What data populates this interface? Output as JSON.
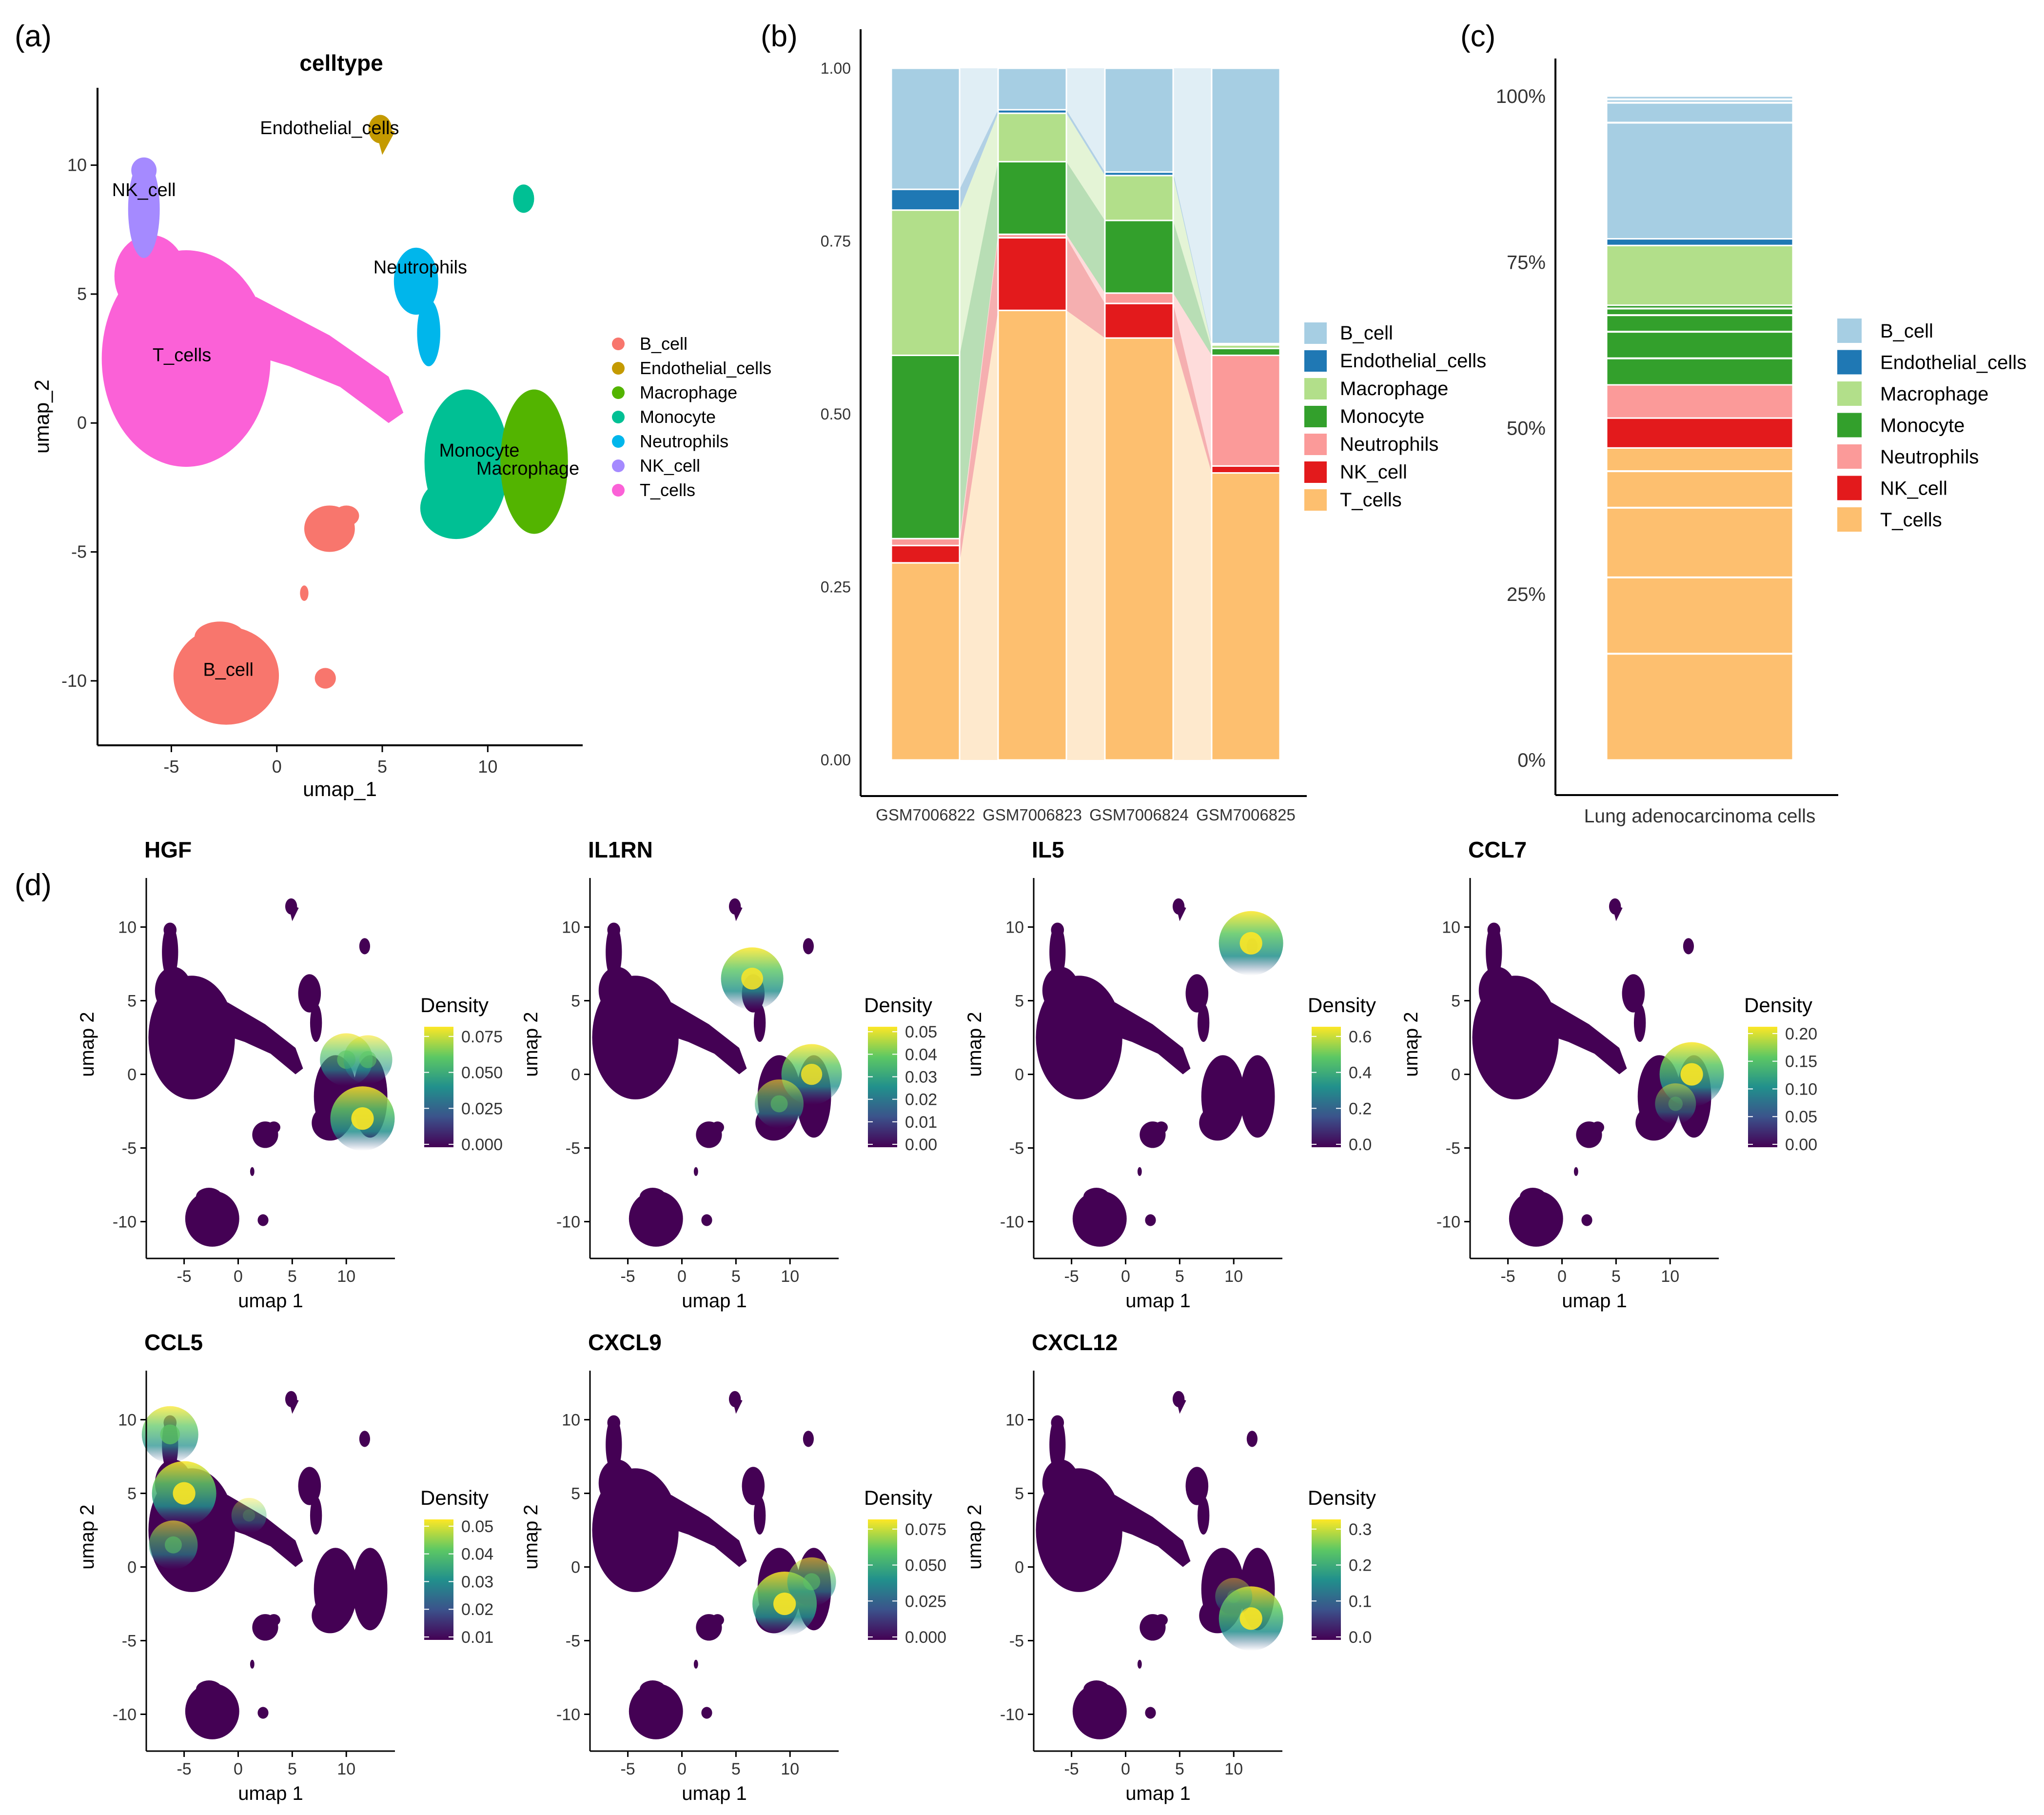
{
  "panel_letters": {
    "a": "(a)",
    "b": "(b)",
    "c": "(c)",
    "d": "(d)"
  },
  "colors": {
    "B_cell": "#a6cee3",
    "Endothelial_cells": "#1f78b4",
    "Macrophage": "#b2df8a",
    "Monocyte": "#33a02c",
    "Neutrophils": "#fb9a99",
    "NK_cell": "#e31a1c",
    "T_cells": "#fdbf6f",
    "umap_B_cell": "#f8766d",
    "umap_Endothelial_cells": "#c49a00",
    "umap_Macrophage": "#53b400",
    "umap_Monocyte": "#00c094",
    "umap_Neutrophils": "#00b6eb",
    "umap_NK_cell": "#a58aff",
    "umap_T_cells": "#fb61d7",
    "viridis": [
      "#440154",
      "#3b528b",
      "#21908c",
      "#5dc863",
      "#fde725"
    ]
  },
  "chart_data": [
    {
      "id": "a",
      "type": "scatter",
      "title": "celltype",
      "xlabel": "umap_1",
      "ylabel": "umap_2",
      "xlim": [
        -8.5,
        14.5
      ],
      "ylim": [
        -12.5,
        13
      ],
      "xticks": [
        -5,
        0,
        5,
        10
      ],
      "yticks": [
        -10,
        -5,
        0,
        5,
        10
      ],
      "legend": [
        "B_cell",
        "Endothelial_cells",
        "Macrophage",
        "Monocyte",
        "Neutrophils",
        "NK_cell",
        "T_cells"
      ],
      "cluster_labels": [
        {
          "text": "Endothelial_cells",
          "x": 2.5,
          "y": 11.2
        },
        {
          "text": "NK_cell",
          "x": -6.3,
          "y": 8.8
        },
        {
          "text": "Neutrophils",
          "x": 6.8,
          "y": 5.8
        },
        {
          "text": "T_cells",
          "x": -4.5,
          "y": 2.4
        },
        {
          "text": "Monocyte",
          "x": 9.6,
          "y": -1.3
        },
        {
          "text": "Macrophage",
          "x": 11.9,
          "y": -2.0
        },
        {
          "text": "B_cell",
          "x": -2.3,
          "y": -9.8
        }
      ]
    },
    {
      "id": "b",
      "type": "bar",
      "stacked": true,
      "categories": [
        "GSM7006822",
        "GSM7006823",
        "GSM7006824",
        "GSM7006825"
      ],
      "ylim": [
        0,
        1
      ],
      "yticks": [
        "0.00",
        "0.25",
        "0.50",
        "0.75",
        "1.00"
      ],
      "legend": [
        "B_cell",
        "Endothelial_cells",
        "Macrophage",
        "Monocyte",
        "Neutrophils",
        "NK_cell",
        "T_cells"
      ],
      "series": [
        {
          "name": "T_cells",
          "values": [
            0.285,
            0.65,
            0.61,
            0.415
          ]
        },
        {
          "name": "NK_cell",
          "values": [
            0.025,
            0.105,
            0.05,
            0.01
          ]
        },
        {
          "name": "Neutrophils",
          "values": [
            0.01,
            0.005,
            0.015,
            0.16
          ]
        },
        {
          "name": "Monocyte",
          "values": [
            0.265,
            0.105,
            0.105,
            0.01
          ]
        },
        {
          "name": "Macrophage",
          "values": [
            0.21,
            0.07,
            0.065,
            0.005
          ]
        },
        {
          "name": "Endothelial_cells",
          "values": [
            0.03,
            0.005,
            0.005,
            0.002
          ]
        },
        {
          "name": "B_cell",
          "values": [
            0.175,
            0.06,
            0.15,
            0.398
          ]
        }
      ]
    },
    {
      "id": "c",
      "type": "bar",
      "stacked": true,
      "categories": [
        "Lung adenocarcinoma cells"
      ],
      "ylim": [
        0,
        1
      ],
      "yticks": [
        "0%",
        "25%",
        "50%",
        "75%",
        "100%"
      ],
      "legend": [
        "B_cell",
        "Endothelial_cells",
        "Macrophage",
        "Monocyte",
        "Neutrophils",
        "NK_cell",
        "T_cells"
      ],
      "series": [
        {
          "name": "T_cells",
          "values": [
            0.47
          ]
        },
        {
          "name": "NK_cell",
          "values": [
            0.045
          ]
        },
        {
          "name": "Neutrophils",
          "values": [
            0.05
          ]
        },
        {
          "name": "Monocyte",
          "values": [
            0.12
          ]
        },
        {
          "name": "Macrophage",
          "values": [
            0.09
          ]
        },
        {
          "name": "Endothelial_cells",
          "values": [
            0.01
          ]
        },
        {
          "name": "B_cell",
          "values": [
            0.215
          ]
        }
      ],
      "inner_lines": {
        "T_cells": [
          0.16,
          0.275,
          0.38,
          0.435
        ],
        "Monocyte": [
          0.605,
          0.645,
          0.67,
          0.68
        ],
        "B_cell": [
          0.96,
          0.99,
          0.995
        ]
      }
    },
    {
      "id": "d1",
      "type": "heatmap",
      "title": "HGF",
      "xlabel": "umap 1",
      "ylabel": "umap 2",
      "legend_title": "Density",
      "xticks": [
        -5,
        0,
        5,
        10
      ],
      "yticks": [
        -10,
        -5,
        0,
        5,
        10
      ],
      "colorbar_ticks": [
        "0.000",
        "0.025",
        "0.050",
        "0.075"
      ],
      "hotspots": [
        {
          "x": 11.5,
          "y": -3,
          "v": 1.0
        },
        {
          "x": 10,
          "y": 1,
          "v": 0.7
        },
        {
          "x": 12,
          "y": 1,
          "v": 0.6
        }
      ]
    },
    {
      "id": "d2",
      "type": "heatmap",
      "title": "IL1RN",
      "xlabel": "umap 1",
      "ylabel": "umap 2",
      "legend_title": "Density",
      "xticks": [
        -5,
        0,
        5,
        10
      ],
      "yticks": [
        -10,
        -5,
        0,
        5,
        10
      ],
      "colorbar_ticks": [
        "0.00",
        "0.01",
        "0.02",
        "0.03",
        "0.04",
        "0.05"
      ],
      "hotspots": [
        {
          "x": 6.5,
          "y": 6.5,
          "v": 0.95
        },
        {
          "x": 12,
          "y": 0,
          "v": 0.9
        },
        {
          "x": 9,
          "y": -2,
          "v": 0.6
        }
      ]
    },
    {
      "id": "d3",
      "type": "heatmap",
      "title": "IL5",
      "xlabel": "umap 1",
      "ylabel": "umap 2",
      "legend_title": "Density",
      "xticks": [
        -5,
        0,
        5,
        10
      ],
      "yticks": [
        -10,
        -5,
        0,
        5,
        10
      ],
      "colorbar_ticks": [
        "0.0",
        "0.2",
        "0.4",
        "0.6"
      ],
      "hotspots": [
        {
          "x": 11.6,
          "y": 8.9,
          "v": 1.0
        }
      ]
    },
    {
      "id": "d4",
      "type": "heatmap",
      "title": "CCL7",
      "xlabel": "umap 1",
      "ylabel": "umap 2",
      "legend_title": "Density",
      "xticks": [
        -5,
        0,
        5,
        10
      ],
      "yticks": [
        -10,
        -5,
        0,
        5,
        10
      ],
      "colorbar_ticks": [
        "0.00",
        "0.05",
        "0.10",
        "0.15",
        "0.20"
      ],
      "hotspots": [
        {
          "x": 12,
          "y": 0,
          "v": 1.0
        },
        {
          "x": 10.5,
          "y": -2,
          "v": 0.4
        }
      ]
    },
    {
      "id": "d5",
      "type": "heatmap",
      "title": "CCL5",
      "xlabel": "umap 1",
      "ylabel": "umap 2",
      "legend_title": "Density",
      "xticks": [
        -5,
        0,
        5,
        10
      ],
      "yticks": [
        -10,
        -5,
        0,
        5,
        10
      ],
      "colorbar_ticks": [
        "0.01",
        "0.02",
        "0.03",
        "0.04",
        "0.05"
      ],
      "hotspots": [
        {
          "x": -5,
          "y": 5,
          "v": 1.0
        },
        {
          "x": -6.3,
          "y": 9,
          "v": 0.8
        },
        {
          "x": -6,
          "y": 1.5,
          "v": 0.6
        },
        {
          "x": 1,
          "y": 3.5,
          "v": 0.25
        }
      ]
    },
    {
      "id": "d6",
      "type": "heatmap",
      "title": "CXCL9",
      "xlabel": "umap 1",
      "ylabel": "umap 2",
      "legend_title": "Density",
      "xticks": [
        -5,
        0,
        5,
        10
      ],
      "yticks": [
        -10,
        -5,
        0,
        5,
        10
      ],
      "colorbar_ticks": [
        "0.000",
        "0.025",
        "0.050",
        "0.075"
      ],
      "hotspots": [
        {
          "x": 9.5,
          "y": -2.5,
          "v": 1.0
        },
        {
          "x": 12,
          "y": -1,
          "v": 0.6
        }
      ]
    },
    {
      "id": "d7",
      "type": "heatmap",
      "title": "CXCL12",
      "xlabel": "umap 1",
      "ylabel": "umap 2",
      "legend_title": "Density",
      "xticks": [
        -5,
        0,
        5,
        10
      ],
      "yticks": [
        -10,
        -5,
        0,
        5,
        10
      ],
      "colorbar_ticks": [
        "0.0",
        "0.1",
        "0.2",
        "0.3"
      ],
      "hotspots": [
        {
          "x": 11.6,
          "y": -3.5,
          "v": 1.0
        },
        {
          "x": 10,
          "y": -2,
          "v": 0.3
        }
      ]
    }
  ]
}
